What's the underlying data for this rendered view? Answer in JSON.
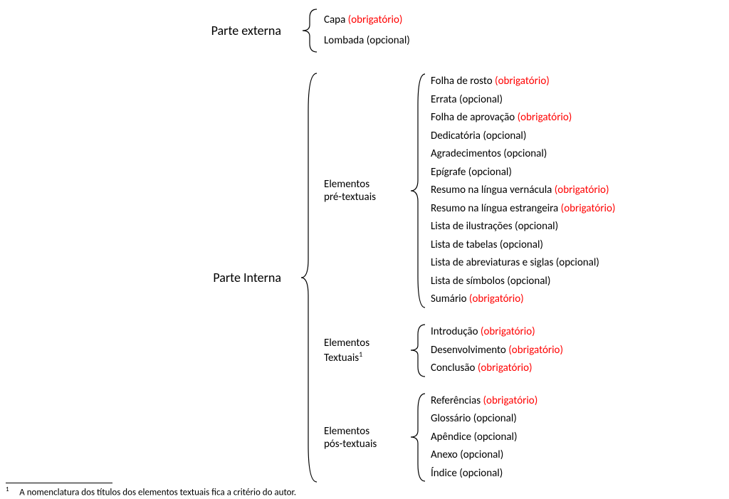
{
  "colors": {
    "required": "#ff0000",
    "optional": "#000000",
    "text": "#000000",
    "bg": "#ffffff"
  },
  "fonts": {
    "family": "Calibri",
    "label_size_pt": 14,
    "item_size_pt": 11,
    "footnote_size_pt": 10
  },
  "externa": {
    "label": "Parte externa",
    "items": [
      {
        "name": "Capa",
        "status": "(obrigatório)",
        "required": true
      },
      {
        "name": "Lombada",
        "status": "(opcional)",
        "required": false
      }
    ]
  },
  "interna": {
    "label": "Parte Interna",
    "groups": {
      "pre": {
        "label_line1": "Elementos",
        "label_line2": "pré-textuais",
        "items": [
          {
            "name": "Folha de rosto",
            "status": "(obrigatório)",
            "required": true
          },
          {
            "name": "Errata",
            "status": "(opcional)",
            "required": false
          },
          {
            "name": "Folha de aprovação",
            "status": "(obrigatório)",
            "required": true
          },
          {
            "name": "Dedicatória",
            "status": "(opcional)",
            "required": false
          },
          {
            "name": "Agradecimentos",
            "status": "(opcional)",
            "required": false
          },
          {
            "name": "Epígrafe",
            "status": "(opcional)",
            "required": false
          },
          {
            "name": "Resumo na língua vernácula",
            "status": "(obrigatório)",
            "required": true
          },
          {
            "name": "Resumo na língua estrangeira",
            "status": "(obrigatório)",
            "required": true
          },
          {
            "name": "Lista de ilustrações",
            "status": "(opcional)",
            "required": false
          },
          {
            "name": "Lista de tabelas",
            "status": "(opcional)",
            "required": false
          },
          {
            "name": "Lista de abreviaturas e siglas",
            "status": "(opcional)",
            "required": false
          },
          {
            "name": "Lista de símbolos",
            "status": "(opcional)",
            "required": false
          },
          {
            "name": "Sumário",
            "status": "(obrigatório)",
            "required": true
          }
        ]
      },
      "textuais": {
        "label_line1": "Elementos",
        "label_line2": "Textuais",
        "sup": "1",
        "items": [
          {
            "name": "Introdução",
            "status": "(obrigatório)",
            "required": true
          },
          {
            "name": "Desenvolvimento",
            "status": "(obrigatório)",
            "required": true
          },
          {
            "name": "Conclusão",
            "status": "(obrigatório)",
            "required": true
          }
        ]
      },
      "pos": {
        "label_line1": "Elementos",
        "label_line2": "pós-textuais",
        "items": [
          {
            "name": "Referências",
            "status": "(obrigatório)",
            "required": true
          },
          {
            "name": "Glossário",
            "status": "(opcional)",
            "required": false
          },
          {
            "name": "Apêndice",
            "status": "(opcional)",
            "required": false
          },
          {
            "name": "Anexo",
            "status": "(opcional)",
            "required": false
          },
          {
            "name": "Índice",
            "status": "(opcional)",
            "required": false
          }
        ]
      }
    }
  },
  "footnote": {
    "marker": "1",
    "text": "A nomenclatura dos títulos dos elementos textuais fica a critério do autor."
  }
}
